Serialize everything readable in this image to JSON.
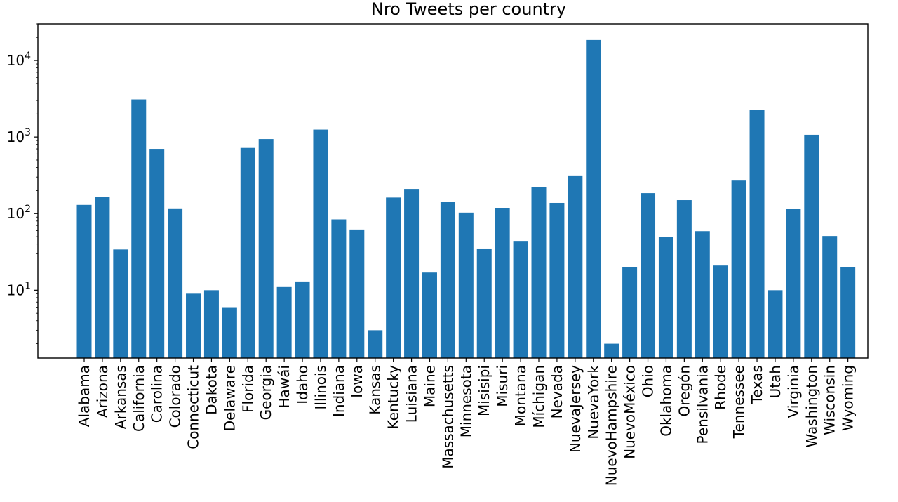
{
  "chart_data": {
    "type": "bar",
    "title": "Nro Tweets per country",
    "xlabel": "",
    "ylabel": "",
    "yscale": "log",
    "ylim": [
      1.3,
      30000
    ],
    "ytick_values": [
      10,
      100,
      1000,
      10000
    ],
    "ytick_labels": [
      {
        "base": "10",
        "exp": "1"
      },
      {
        "base": "10",
        "exp": "2"
      },
      {
        "base": "10",
        "exp": "3"
      },
      {
        "base": "10",
        "exp": "4"
      }
    ],
    "grid": false,
    "bar_color": "#1f77b4",
    "categories": [
      "Alabama",
      "Arizona",
      "Arkansas",
      "California",
      "Carolina",
      "Colorado",
      "Connecticut",
      "Dakota",
      "Delaware",
      "Florida",
      "Georgia",
      "Hawái",
      "Idaho",
      "Illinois",
      "Indiana",
      "Iowa",
      "Kansas",
      "Kentucky",
      "Luisiana",
      "Maine",
      "Massachusetts",
      "Minnesota",
      "Misisipi",
      "Misuri",
      "Montana",
      "Míchigan",
      "Nevada",
      "NuevaJersey",
      "NuevaYork",
      "NuevoHampshire",
      "NuevoMéxico",
      "Ohio",
      "Oklahoma",
      "Oregón",
      "Pensilvania",
      "Rhode",
      "Tennessee",
      "Texas",
      "Utah",
      "Virginia",
      "Washington",
      "Wisconsin",
      "Wyoming"
    ],
    "values": [
      130,
      165,
      34,
      3100,
      700,
      117,
      9,
      10,
      6,
      720,
      940,
      11,
      13,
      1250,
      84,
      62,
      3,
      162,
      210,
      17,
      143,
      103,
      35,
      119,
      44,
      220,
      138,
      315,
      18500,
      2,
      20,
      185,
      50,
      150,
      59,
      21,
      270,
      2250,
      10,
      116,
      1070,
      51,
      20
    ]
  }
}
